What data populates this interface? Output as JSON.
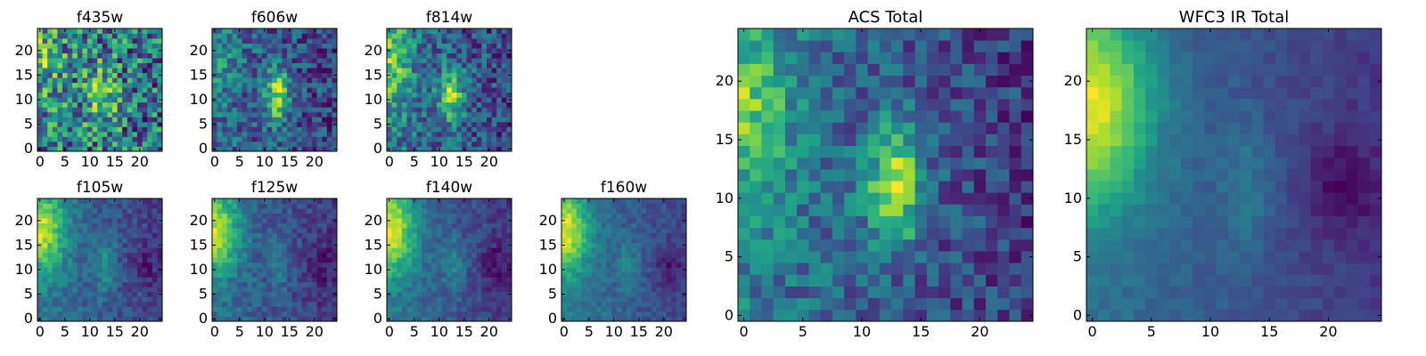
{
  "chart_data": [
    {
      "type": "heatmap",
      "title": "f435w",
      "grid_size": 25,
      "xticks": [
        0,
        5,
        10,
        15,
        20
      ],
      "yticks": [
        0,
        5,
        10,
        15,
        20
      ],
      "xlim": [
        -0.5,
        24.5
      ],
      "ylim": [
        -0.5,
        24.5
      ],
      "noise": 0.32,
      "model": {
        "edge_amp": 0.15,
        "edge_x0": 0,
        "edge_y0": 18,
        "edge_sx": 3,
        "edge_sy": 6,
        "core_amp": 0.35,
        "core_x0": 12.5,
        "core_y0": 11,
        "core_sx": 2,
        "core_sy": 4,
        "gradient": 0.15,
        "base": 0.55,
        "dark_patch": 0
      }
    },
    {
      "type": "heatmap",
      "title": "f606w",
      "grid_size": 25,
      "xticks": [
        0,
        5,
        10,
        15,
        20
      ],
      "yticks": [
        0,
        5,
        10,
        15,
        20
      ],
      "xlim": [
        -0.5,
        24.5
      ],
      "ylim": [
        -0.5,
        24.5
      ],
      "noise": 0.22,
      "model": {
        "edge_amp": 0.2,
        "edge_x0": 0,
        "edge_y0": 18,
        "edge_sx": 3,
        "edge_sy": 6,
        "core_amp": 0.55,
        "core_x0": 12.5,
        "core_y0": 11,
        "core_sx": 1.6,
        "core_sy": 4,
        "gradient": 0.2,
        "base": 0.5,
        "dark_patch": 0
      }
    },
    {
      "type": "heatmap",
      "title": "f814w",
      "grid_size": 25,
      "xticks": [
        0,
        5,
        10,
        15,
        20
      ],
      "yticks": [
        0,
        5,
        10,
        15,
        20
      ],
      "xlim": [
        -0.5,
        24.5
      ],
      "ylim": [
        -0.5,
        24.5
      ],
      "noise": 0.2,
      "model": {
        "edge_amp": 0.35,
        "edge_x0": 0,
        "edge_y0": 18,
        "edge_sx": 3,
        "edge_sy": 6,
        "core_amp": 0.45,
        "core_x0": 12.5,
        "core_y0": 11,
        "core_sx": 1.8,
        "core_sy": 3.5,
        "gradient": 0.25,
        "base": 0.45,
        "dark_patch": 0
      }
    },
    {
      "type": "heatmap",
      "title": "f105w",
      "grid_size": 25,
      "xticks": [
        0,
        5,
        10,
        15,
        20
      ],
      "yticks": [
        0,
        5,
        10,
        15,
        20
      ],
      "xlim": [
        -0.5,
        24.5
      ],
      "ylim": [
        -0.5,
        24.5
      ],
      "noise": 0.12,
      "model": {
        "edge_amp": 0.6,
        "edge_x0": 0,
        "edge_y0": 18,
        "edge_sx": 3.5,
        "edge_sy": 6,
        "core_amp": 0.25,
        "core_x0": 13,
        "core_y0": 11,
        "core_sx": 1.5,
        "core_sy": 4,
        "gradient": 0.4,
        "base": 0.35,
        "dark_patch": 0.15
      }
    },
    {
      "type": "heatmap",
      "title": "f125w",
      "grid_size": 25,
      "xticks": [
        0,
        5,
        10,
        15,
        20
      ],
      "yticks": [
        0,
        5,
        10,
        15,
        20
      ],
      "xlim": [
        -0.5,
        24.5
      ],
      "ylim": [
        -0.5,
        24.5
      ],
      "noise": 0.12,
      "model": {
        "edge_amp": 0.6,
        "edge_x0": 0,
        "edge_y0": 18,
        "edge_sx": 3.5,
        "edge_sy": 6,
        "core_amp": 0.2,
        "core_x0": 13,
        "core_y0": 11,
        "core_sx": 1.5,
        "core_sy": 4,
        "gradient": 0.4,
        "base": 0.33,
        "dark_patch": 0.15
      }
    },
    {
      "type": "heatmap",
      "title": "f140w",
      "grid_size": 25,
      "xticks": [
        0,
        5,
        10,
        15,
        20
      ],
      "yticks": [
        0,
        5,
        10,
        15,
        20
      ],
      "xlim": [
        -0.5,
        24.5
      ],
      "ylim": [
        -0.5,
        24.5
      ],
      "noise": 0.1,
      "model": {
        "edge_amp": 0.65,
        "edge_x0": 0,
        "edge_y0": 18,
        "edge_sx": 3.5,
        "edge_sy": 6,
        "core_amp": 0.2,
        "core_x0": 13,
        "core_y0": 11,
        "core_sx": 1.5,
        "core_sy": 4,
        "gradient": 0.45,
        "base": 0.3,
        "dark_patch": 0.18
      }
    },
    {
      "type": "heatmap",
      "title": "f160w",
      "grid_size": 25,
      "xticks": [
        0,
        5,
        10,
        15,
        20
      ],
      "yticks": [
        0,
        5,
        10,
        15,
        20
      ],
      "xlim": [
        -0.5,
        24.5
      ],
      "ylim": [
        -0.5,
        24.5
      ],
      "noise": 0.1,
      "model": {
        "edge_amp": 0.7,
        "edge_x0": 0,
        "edge_y0": 18,
        "edge_sx": 3.5,
        "edge_sy": 6,
        "core_amp": 0.18,
        "core_x0": 13,
        "core_y0": 11,
        "core_sx": 1.5,
        "core_sy": 4,
        "gradient": 0.45,
        "base": 0.28,
        "dark_patch": 0.2
      }
    },
    {
      "type": "heatmap",
      "title": "ACS Total",
      "grid_size": 25,
      "xticks": [
        0,
        5,
        10,
        15,
        20
      ],
      "yticks": [
        0,
        5,
        10,
        15,
        20
      ],
      "xlim": [
        -0.5,
        24.5
      ],
      "ylim": [
        -0.5,
        24.5
      ],
      "noise": 0.14,
      "model": {
        "edge_amp": 0.3,
        "edge_x0": 0,
        "edge_y0": 18,
        "edge_sx": 3,
        "edge_sy": 6,
        "core_amp": 0.5,
        "core_x0": 12.8,
        "core_y0": 11,
        "core_sx": 1.6,
        "core_sy": 3.5,
        "gradient": 0.3,
        "base": 0.45,
        "dark_patch": 0
      }
    },
    {
      "type": "heatmap",
      "title": "WFC3 IR Total",
      "grid_size": 25,
      "xticks": [
        0,
        5,
        10,
        15,
        20
      ],
      "yticks": [
        0,
        5,
        10,
        15,
        20
      ],
      "xlim": [
        -0.5,
        24.5
      ],
      "ylim": [
        -0.5,
        24.5
      ],
      "noise": 0.06,
      "model": {
        "edge_amp": 0.75,
        "edge_x0": 0,
        "edge_y0": 18,
        "edge_sx": 3.5,
        "edge_sy": 6,
        "core_amp": 0.18,
        "core_x0": 13,
        "core_y0": 11,
        "core_sx": 1.5,
        "core_sy": 4,
        "gradient": 0.45,
        "base": 0.28,
        "dark_patch": 0.22
      }
    }
  ],
  "colormap": {
    "name": "viridis",
    "stops": [
      "#440154",
      "#482878",
      "#3e4989",
      "#31688e",
      "#26828e",
      "#1f9e89",
      "#35b779",
      "#6ece58",
      "#b5de2b",
      "#fde725"
    ]
  }
}
